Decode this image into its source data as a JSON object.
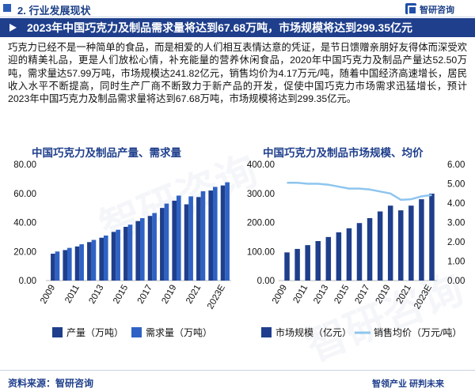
{
  "header": {
    "section_title": "2. 行业发展现状",
    "brand": "智研咨询"
  },
  "banner": {
    "title": "2023年中国巧克力及制品需求量将达到67.68万吨，市场规模将达到299.35亿元"
  },
  "paragraph": "巧克力已经不是一种简单的食品，而是相爱的人们相互表情达意的凭证，是节日馈赠亲朋好友得体而深受欢迎的精美礼品，更是人们放松心情，补充能量的营养休闲食品，2020年中国巧克力及制品产量达52.50万吨，需求量达57.99万吨，市场规模达241.82亿元，销售均价为4.17万元/吨，随着中国经济高速增长，居民收入水平不断提高，同时生产厂商不断致力于新产品的开发，促使中国巧克力市场需求迅猛增长，预计2023年中国巧克力及制品需求量将达到67.68万吨，市场规模将达到299.35亿元。",
  "chart_data": [
    {
      "type": "bar",
      "title": "中国巧克力及制品产量、需求量",
      "categories": [
        "2009",
        "2010",
        "2011",
        "2012",
        "2013",
        "2014",
        "2015",
        "2016",
        "2017",
        "2018",
        "2019",
        "2020",
        "2021",
        "2022",
        "2023E"
      ],
      "x_tick_labels": [
        "2009",
        "2011",
        "2013",
        "2015",
        "2017",
        "2019",
        "2021",
        "2023E"
      ],
      "series": [
        {
          "name": "产量（万吨）",
          "color": "#1f3f8c",
          "values": [
            18.5,
            21.0,
            23.5,
            26.5,
            29.5,
            33.5,
            37.0,
            41.0,
            44.5,
            50.0,
            55.0,
            52.5,
            57.5,
            62.0,
            65.5
          ]
        },
        {
          "name": "需求量（万吨）",
          "color": "#2f62c4",
          "values": [
            20.0,
            22.5,
            25.0,
            28.0,
            31.0,
            35.0,
            38.5,
            43.0,
            46.5,
            53.0,
            58.5,
            57.99,
            61.5,
            64.5,
            67.68
          ]
        }
      ],
      "y_ticks": [
        "0.00",
        "20.00",
        "40.00",
        "60.00",
        "80.00"
      ],
      "ylim": [
        0,
        80
      ],
      "legend": "bottom"
    },
    {
      "type": "bar+line",
      "title": "中国巧克力及制品市场规模、均价",
      "categories": [
        "2009",
        "2010",
        "2011",
        "2012",
        "2013",
        "2014",
        "2015",
        "2016",
        "2017",
        "2018",
        "2019",
        "2020",
        "2021",
        "2022",
        "2023E"
      ],
      "x_tick_labels": [
        "2009",
        "2011",
        "2013",
        "2015",
        "2017",
        "2019",
        "2021",
        "2023E"
      ],
      "series": [
        {
          "name": "市场规模（亿元）",
          "color": "#1f3f8c",
          "axis": "left",
          "values": [
            97,
            109,
            122,
            136,
            150,
            166,
            180,
            198,
            215,
            238,
            258,
            241.82,
            258,
            280,
            299.35
          ]
        },
        {
          "name": "销售均价（万元/吨）",
          "color": "#8ec5ee",
          "axis": "right",
          "values": [
            5.05,
            5.05,
            5.0,
            5.0,
            4.95,
            4.85,
            4.75,
            4.75,
            4.7,
            4.6,
            4.5,
            4.17,
            4.2,
            4.35,
            4.42
          ]
        }
      ],
      "y_ticks_left": [
        "0.00",
        "100.00",
        "200.00",
        "300.00",
        "400.00"
      ],
      "y_ticks_right": [
        "0.00",
        "1.00",
        "2.00",
        "3.00",
        "4.00",
        "5.00",
        "6.00"
      ],
      "ylim_left": [
        0,
        400
      ],
      "ylim_right": [
        0,
        6
      ],
      "legend": "bottom"
    }
  ],
  "footer": {
    "source": "资料来源：智研咨询",
    "slogan": "智领产业  研判未来"
  },
  "watermarks": [
    "智研咨询",
    "www.chyxx.com"
  ]
}
